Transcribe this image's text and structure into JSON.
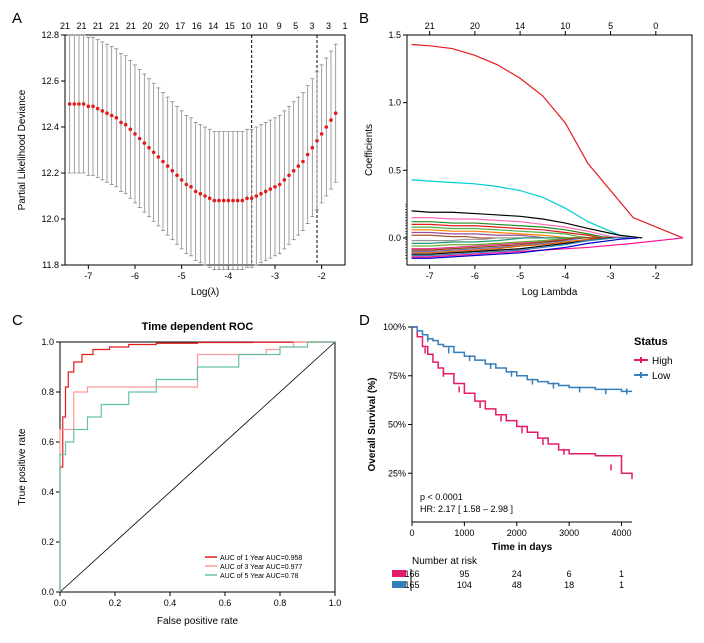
{
  "panelA": {
    "label": "A",
    "xlabel": "Log(λ)",
    "ylabel": "Partial Likelihood Deviance",
    "xlim": [
      -7.5,
      -1.5
    ],
    "ylim": [
      11.8,
      12.8
    ],
    "yticks": [
      11.8,
      12.0,
      12.2,
      12.4,
      12.6,
      12.8
    ],
    "xticks": [
      -7,
      -6,
      -5,
      -4,
      -3,
      -2
    ],
    "top_counts": [
      21,
      21,
      21,
      21,
      21,
      20,
      20,
      17,
      16,
      14,
      15,
      10,
      10,
      9,
      5,
      3,
      3,
      1
    ],
    "vlines": [
      -3.5,
      -2.1
    ],
    "points_x": [
      -7.4,
      -7.3,
      -7.2,
      -7.1,
      -7.0,
      -6.9,
      -6.8,
      -6.7,
      -6.6,
      -6.5,
      -6.4,
      -6.3,
      -6.2,
      -6.1,
      -6.0,
      -5.9,
      -5.8,
      -5.7,
      -5.6,
      -5.5,
      -5.4,
      -5.3,
      -5.2,
      -5.1,
      -5.0,
      -4.9,
      -4.8,
      -4.7,
      -4.6,
      -4.5,
      -4.4,
      -4.3,
      -4.2,
      -4.1,
      -4.0,
      -3.9,
      -3.8,
      -3.7,
      -3.6,
      -3.5,
      -3.4,
      -3.3,
      -3.2,
      -3.1,
      -3.0,
      -2.9,
      -2.8,
      -2.7,
      -2.6,
      -2.5,
      -2.4,
      -2.3,
      -2.2,
      -2.1,
      -2.0,
      -1.9,
      -1.8,
      -1.7
    ],
    "points_y": [
      12.5,
      12.5,
      12.5,
      12.5,
      12.49,
      12.49,
      12.48,
      12.47,
      12.46,
      12.45,
      12.44,
      12.42,
      12.41,
      12.39,
      12.37,
      12.35,
      12.33,
      12.31,
      12.29,
      12.27,
      12.25,
      12.23,
      12.21,
      12.19,
      12.17,
      12.15,
      12.14,
      12.12,
      12.11,
      12.1,
      12.09,
      12.08,
      12.08,
      12.08,
      12.08,
      12.08,
      12.08,
      12.08,
      12.09,
      12.09,
      12.1,
      12.11,
      12.12,
      12.13,
      12.14,
      12.15,
      12.17,
      12.19,
      12.21,
      12.23,
      12.25,
      12.28,
      12.31,
      12.34,
      12.37,
      12.4,
      12.43,
      12.46
    ],
    "err": 0.3,
    "dot_color": "#e41a1c",
    "err_color": "#888888"
  },
  "panelB": {
    "label": "B",
    "xlabel": "Log Lambda",
    "ylabel": "Coefficients",
    "xlim": [
      -7.5,
      -1.2
    ],
    "ylim": [
      -0.2,
      1.5
    ],
    "yticks": [
      0.0,
      0.5,
      1.0,
      1.5
    ],
    "xticks": [
      -7,
      -6,
      -5,
      -4,
      -3,
      -2
    ],
    "top_counts": [
      21,
      20,
      14,
      10,
      5,
      0
    ],
    "top_positions": [
      -7,
      -6,
      -5,
      -4,
      -3,
      -2
    ],
    "lines": [
      {
        "color": "#e41a1c",
        "y": [
          1.43,
          1.42,
          1.4,
          1.35,
          1.28,
          1.18,
          1.05,
          0.85,
          0.55,
          0.15,
          0.0
        ],
        "x": [
          -7.4,
          -7.0,
          -6.5,
          -6.0,
          -5.5,
          -5.0,
          -4.5,
          -4.0,
          -3.5,
          -2.5,
          -1.4
        ]
      },
      {
        "color": "#00ced1",
        "y": [
          0.43,
          0.42,
          0.41,
          0.4,
          0.38,
          0.35,
          0.3,
          0.22,
          0.12,
          0.02,
          0.0
        ],
        "x": [
          -7.4,
          -7.0,
          -6.5,
          -6.0,
          -5.5,
          -5.0,
          -4.5,
          -4.0,
          -3.5,
          -2.8,
          -2.3
        ]
      },
      {
        "color": "#000000",
        "y": [
          0.2,
          0.19,
          0.19,
          0.18,
          0.17,
          0.16,
          0.14,
          0.11,
          0.07,
          0.02,
          0.0
        ],
        "x": [
          -7.4,
          -7.0,
          -6.5,
          -6.0,
          -5.5,
          -5.0,
          -4.5,
          -4.0,
          -3.5,
          -2.8,
          -2.3
        ]
      },
      {
        "color": "#ff69b4",
        "y": [
          0.15,
          0.15,
          0.14,
          0.14,
          0.13,
          0.12,
          0.1,
          0.08,
          0.05,
          0.01,
          0.0
        ],
        "x": [
          -7.4,
          -7.0,
          -6.5,
          -6.0,
          -5.5,
          -5.0,
          -4.5,
          -4.0,
          -3.5,
          -3.0,
          -2.5
        ]
      },
      {
        "color": "#228b22",
        "y": [
          0.12,
          0.12,
          0.11,
          0.11,
          0.1,
          0.09,
          0.08,
          0.06,
          0.03,
          0.01,
          0.0
        ],
        "x": [
          -7.4,
          -7.0,
          -6.5,
          -6.0,
          -5.5,
          -5.0,
          -4.5,
          -4.0,
          -3.5,
          -3.2,
          -2.9
        ]
      },
      {
        "color": "#e41a1c",
        "y": [
          0.1,
          0.1,
          0.09,
          0.09,
          0.08,
          0.07,
          0.06,
          0.04,
          0.02,
          0.0,
          0.0
        ],
        "x": [
          -7.4,
          -7.0,
          -6.5,
          -6.0,
          -5.5,
          -5.0,
          -4.5,
          -4.0,
          -3.5,
          -3.2,
          -3.0
        ]
      },
      {
        "color": "#4daf4a",
        "y": [
          0.08,
          0.08,
          0.07,
          0.07,
          0.06,
          0.05,
          0.04,
          0.03,
          0.01,
          0.0,
          0.0
        ],
        "x": [
          -7.4,
          -7.0,
          -6.5,
          -6.0,
          -5.5,
          -5.0,
          -4.5,
          -4.0,
          -3.7,
          -3.4,
          -3.2
        ]
      },
      {
        "color": "#ff7f00",
        "y": [
          0.06,
          0.06,
          0.05,
          0.05,
          0.04,
          0.03,
          0.02,
          0.01,
          0.0,
          0.0,
          0.0
        ],
        "x": [
          -7.4,
          -7.0,
          -6.5,
          -6.0,
          -5.5,
          -5.0,
          -4.5,
          -4.2,
          -3.9,
          -3.7,
          -3.5
        ]
      },
      {
        "color": "#984ea3",
        "y": [
          0.04,
          0.04,
          0.03,
          0.03,
          0.02,
          0.02,
          0.01,
          0.0,
          0.0,
          0.0,
          0.0
        ],
        "x": [
          -7.4,
          -7.0,
          -6.5,
          -6.0,
          -5.5,
          -5.0,
          -4.7,
          -4.4,
          -4.2,
          -4.0,
          -3.8
        ]
      },
      {
        "color": "#a65628",
        "y": [
          0.02,
          0.02,
          0.01,
          0.01,
          0.0,
          0.0,
          0.0,
          0.0,
          0.0,
          0.0,
          0.0
        ],
        "x": [
          -7.4,
          -7.0,
          -6.5,
          -6.2,
          -5.9,
          -5.6,
          -5.3,
          -5.0,
          -4.7,
          -4.4,
          -4.0
        ]
      },
      {
        "color": "#999999",
        "y": [
          -0.02,
          -0.02,
          -0.02,
          -0.01,
          -0.01,
          0.0,
          0.0,
          0.0,
          0.0,
          0.0,
          0.0
        ],
        "x": [
          -7.4,
          -7.0,
          -6.5,
          -6.2,
          -5.8,
          -5.5,
          -5.2,
          -4.9,
          -4.6,
          -4.3,
          -4.0
        ]
      },
      {
        "color": "#1b9e77",
        "y": [
          -0.04,
          -0.04,
          -0.03,
          -0.03,
          -0.02,
          -0.01,
          0.0,
          0.0,
          0.0,
          0.0,
          0.0
        ],
        "x": [
          -7.4,
          -7.0,
          -6.5,
          -6.0,
          -5.5,
          -5.2,
          -4.9,
          -4.6,
          -4.3,
          -4.0,
          -3.7
        ]
      },
      {
        "color": "#66a61e",
        "y": [
          -0.06,
          -0.06,
          -0.05,
          -0.05,
          -0.04,
          -0.03,
          -0.02,
          -0.01,
          0.0,
          0.0,
          0.0
        ],
        "x": [
          -7.4,
          -7.0,
          -6.5,
          -6.0,
          -5.5,
          -5.0,
          -4.5,
          -4.2,
          -3.9,
          -3.6,
          -3.3
        ]
      },
      {
        "color": "#e7298a",
        "y": [
          -0.08,
          -0.08,
          -0.07,
          -0.06,
          -0.05,
          -0.04,
          -0.03,
          -0.01,
          0.0,
          0.0,
          0.0
        ],
        "x": [
          -7.4,
          -7.0,
          -6.5,
          -6.0,
          -5.5,
          -5.0,
          -4.5,
          -4.0,
          -3.7,
          -3.4,
          -3.1
        ]
      },
      {
        "color": "#7570b3",
        "y": [
          -0.1,
          -0.1,
          -0.09,
          -0.08,
          -0.07,
          -0.06,
          -0.04,
          -0.02,
          0.0,
          0.0,
          0.0
        ],
        "x": [
          -7.4,
          -7.0,
          -6.5,
          -6.0,
          -5.5,
          -5.0,
          -4.5,
          -4.0,
          -3.6,
          -3.2,
          -2.9
        ]
      },
      {
        "color": "#d95f02",
        "y": [
          -0.11,
          -0.11,
          -0.1,
          -0.09,
          -0.08,
          -0.06,
          -0.05,
          -0.03,
          -0.01,
          0.0,
          0.0
        ],
        "x": [
          -7.4,
          -7.0,
          -6.5,
          -6.0,
          -5.5,
          -5.0,
          -4.5,
          -4.0,
          -3.5,
          -3.1,
          -2.8
        ]
      },
      {
        "color": "#000000",
        "y": [
          -0.12,
          -0.12,
          -0.11,
          -0.1,
          -0.09,
          -0.08,
          -0.06,
          -0.04,
          -0.02,
          0.0,
          0.0
        ],
        "x": [
          -7.4,
          -7.0,
          -6.5,
          -6.0,
          -5.5,
          -5.0,
          -4.5,
          -4.0,
          -3.5,
          -3.0,
          -2.6
        ]
      },
      {
        "color": "#377eb8",
        "y": [
          -0.13,
          -0.13,
          -0.12,
          -0.11,
          -0.1,
          -0.09,
          -0.07,
          -0.05,
          -0.02,
          0.0,
          0.0
        ],
        "x": [
          -7.4,
          -7.0,
          -6.5,
          -6.0,
          -5.5,
          -5.0,
          -4.5,
          -4.0,
          -3.5,
          -2.9,
          -2.5
        ]
      },
      {
        "color": "#ff1493",
        "y": [
          -0.14,
          -0.14,
          -0.13,
          -0.12,
          -0.11,
          -0.1,
          -0.09,
          -0.08,
          -0.07,
          -0.04,
          0.0
        ],
        "x": [
          -7.4,
          -7.0,
          -6.5,
          -6.0,
          -5.5,
          -5.0,
          -4.5,
          -4.0,
          -3.5,
          -2.5,
          -1.4
        ]
      },
      {
        "color": "#0000cd",
        "y": [
          -0.15,
          -0.15,
          -0.14,
          -0.13,
          -0.12,
          -0.11,
          -0.09,
          -0.07,
          -0.04,
          -0.01,
          0.0
        ],
        "x": [
          -7.4,
          -7.0,
          -6.5,
          -6.0,
          -5.5,
          -5.0,
          -4.5,
          -4.0,
          -3.5,
          -2.8,
          -2.4
        ]
      },
      {
        "color": "#8b4513",
        "y": [
          -0.09,
          -0.09,
          -0.08,
          -0.07,
          -0.06,
          -0.05,
          -0.03,
          -0.02,
          0.0,
          0.0,
          0.0
        ],
        "x": [
          -7.4,
          -7.0,
          -6.5,
          -6.0,
          -5.5,
          -5.0,
          -4.5,
          -4.1,
          -3.8,
          -3.5,
          -3.2
        ]
      }
    ]
  },
  "panelC": {
    "label": "C",
    "title": "Time dependent ROC",
    "xlabel": "False positive rate",
    "ylabel": "True positive rate",
    "xlim": [
      0,
      1
    ],
    "ylim": [
      0,
      1
    ],
    "ticks": [
      0.0,
      0.2,
      0.4,
      0.6,
      0.8,
      1.0
    ],
    "curves": [
      {
        "color": "#e41a1c",
        "x": [
          0,
          0.01,
          0.02,
          0.03,
          0.05,
          0.08,
          0.12,
          0.18,
          0.25,
          0.35,
          0.5,
          0.7,
          0.85,
          1.0
        ],
        "y": [
          0,
          0.5,
          0.7,
          0.82,
          0.88,
          0.92,
          0.95,
          0.97,
          0.98,
          0.99,
          0.995,
          0.998,
          0.999,
          1.0
        ]
      },
      {
        "color": "#fb9a99",
        "x": [
          0,
          0.0,
          0.0,
          0.05,
          0.1,
          0.15,
          0.2,
          0.3,
          0.4,
          0.5,
          0.75,
          0.8,
          0.85,
          1.0
        ],
        "y": [
          0,
          0.3,
          0.65,
          0.65,
          0.8,
          0.82,
          0.82,
          0.82,
          0.82,
          0.82,
          0.95,
          0.97,
          0.98,
          1.0
        ]
      },
      {
        "color": "#66c2a5",
        "x": [
          0,
          0.0,
          0.0,
          0.02,
          0.05,
          0.1,
          0.15,
          0.25,
          0.35,
          0.5,
          0.65,
          0.8,
          0.9,
          1.0
        ],
        "y": [
          0,
          0.4,
          0.5,
          0.55,
          0.6,
          0.65,
          0.7,
          0.75,
          0.8,
          0.85,
          0.9,
          0.95,
          0.98,
          1.0
        ]
      }
    ],
    "legend": [
      {
        "color": "#e41a1c",
        "text": "AUC of 1 Year AUC=0.958"
      },
      {
        "color": "#fb9a99",
        "text": "AUC of 3 Year AUC=0.977"
      },
      {
        "color": "#66c2a5",
        "text": "AUC of 5 Year AUC=0.78"
      }
    ]
  },
  "panelD": {
    "label": "D",
    "xlabel": "Time in days",
    "ylabel": "Overall Survival (%)",
    "legend_title": "Status",
    "legend_items": [
      {
        "color": "#e41a6b",
        "label": "High"
      },
      {
        "color": "#377eb8",
        "label": "Low"
      }
    ],
    "xlim": [
      0,
      4200
    ],
    "ylim": [
      0,
      100
    ],
    "yticks": [
      25,
      50,
      75,
      100
    ],
    "yticklabels": [
      "25%",
      "50%",
      "75%",
      "100%"
    ],
    "xticks": [
      0,
      1000,
      2000,
      3000,
      4000
    ],
    "pval_text": "p < 0.0001",
    "hr_text": "HR: 2.17 [ 1.58 – 2.98 ]",
    "risk_title": "Number at risk",
    "risk_table": {
      "colors": [
        "#e41a6b",
        "#377eb8"
      ],
      "rows": [
        [
          166,
          95,
          24,
          6,
          1
        ],
        [
          165,
          104,
          48,
          18,
          1
        ]
      ]
    },
    "high_curve": {
      "x": [
        0,
        100,
        200,
        300,
        400,
        500,
        600,
        800,
        1000,
        1200,
        1400,
        1600,
        1800,
        2000,
        2200,
        2400,
        2600,
        2800,
        3000,
        3500,
        4000,
        4200
      ],
      "y": [
        100,
        95,
        90,
        86,
        82,
        79,
        76,
        71,
        66,
        62,
        58,
        55,
        52,
        49,
        46,
        43,
        40,
        37,
        35,
        34,
        25,
        22
      ]
    },
    "low_curve": {
      "x": [
        0,
        100,
        200,
        300,
        400,
        500,
        600,
        800,
        1000,
        1200,
        1400,
        1600,
        1800,
        2000,
        2200,
        2400,
        2600,
        2800,
        3000,
        3500,
        4000,
        4200
      ],
      "y": [
        100,
        98,
        96,
        94,
        93,
        91,
        90,
        87,
        85,
        83,
        81,
        79,
        77,
        75,
        73,
        72,
        71,
        70,
        69,
        68,
        67,
        67
      ]
    },
    "high_cens": [
      [
        250,
        88
      ],
      [
        600,
        76
      ],
      [
        900,
        68
      ],
      [
        1300,
        60
      ],
      [
        1700,
        53
      ],
      [
        2100,
        47
      ],
      [
        2500,
        41
      ],
      [
        2900,
        36
      ],
      [
        3800,
        28
      ]
    ],
    "low_cens": [
      [
        300,
        94
      ],
      [
        700,
        88
      ],
      [
        1100,
        84
      ],
      [
        1500,
        80
      ],
      [
        1900,
        76
      ],
      [
        2300,
        72
      ],
      [
        2700,
        70
      ],
      [
        3200,
        68
      ],
      [
        3700,
        67
      ],
      [
        4100,
        67
      ]
    ]
  }
}
